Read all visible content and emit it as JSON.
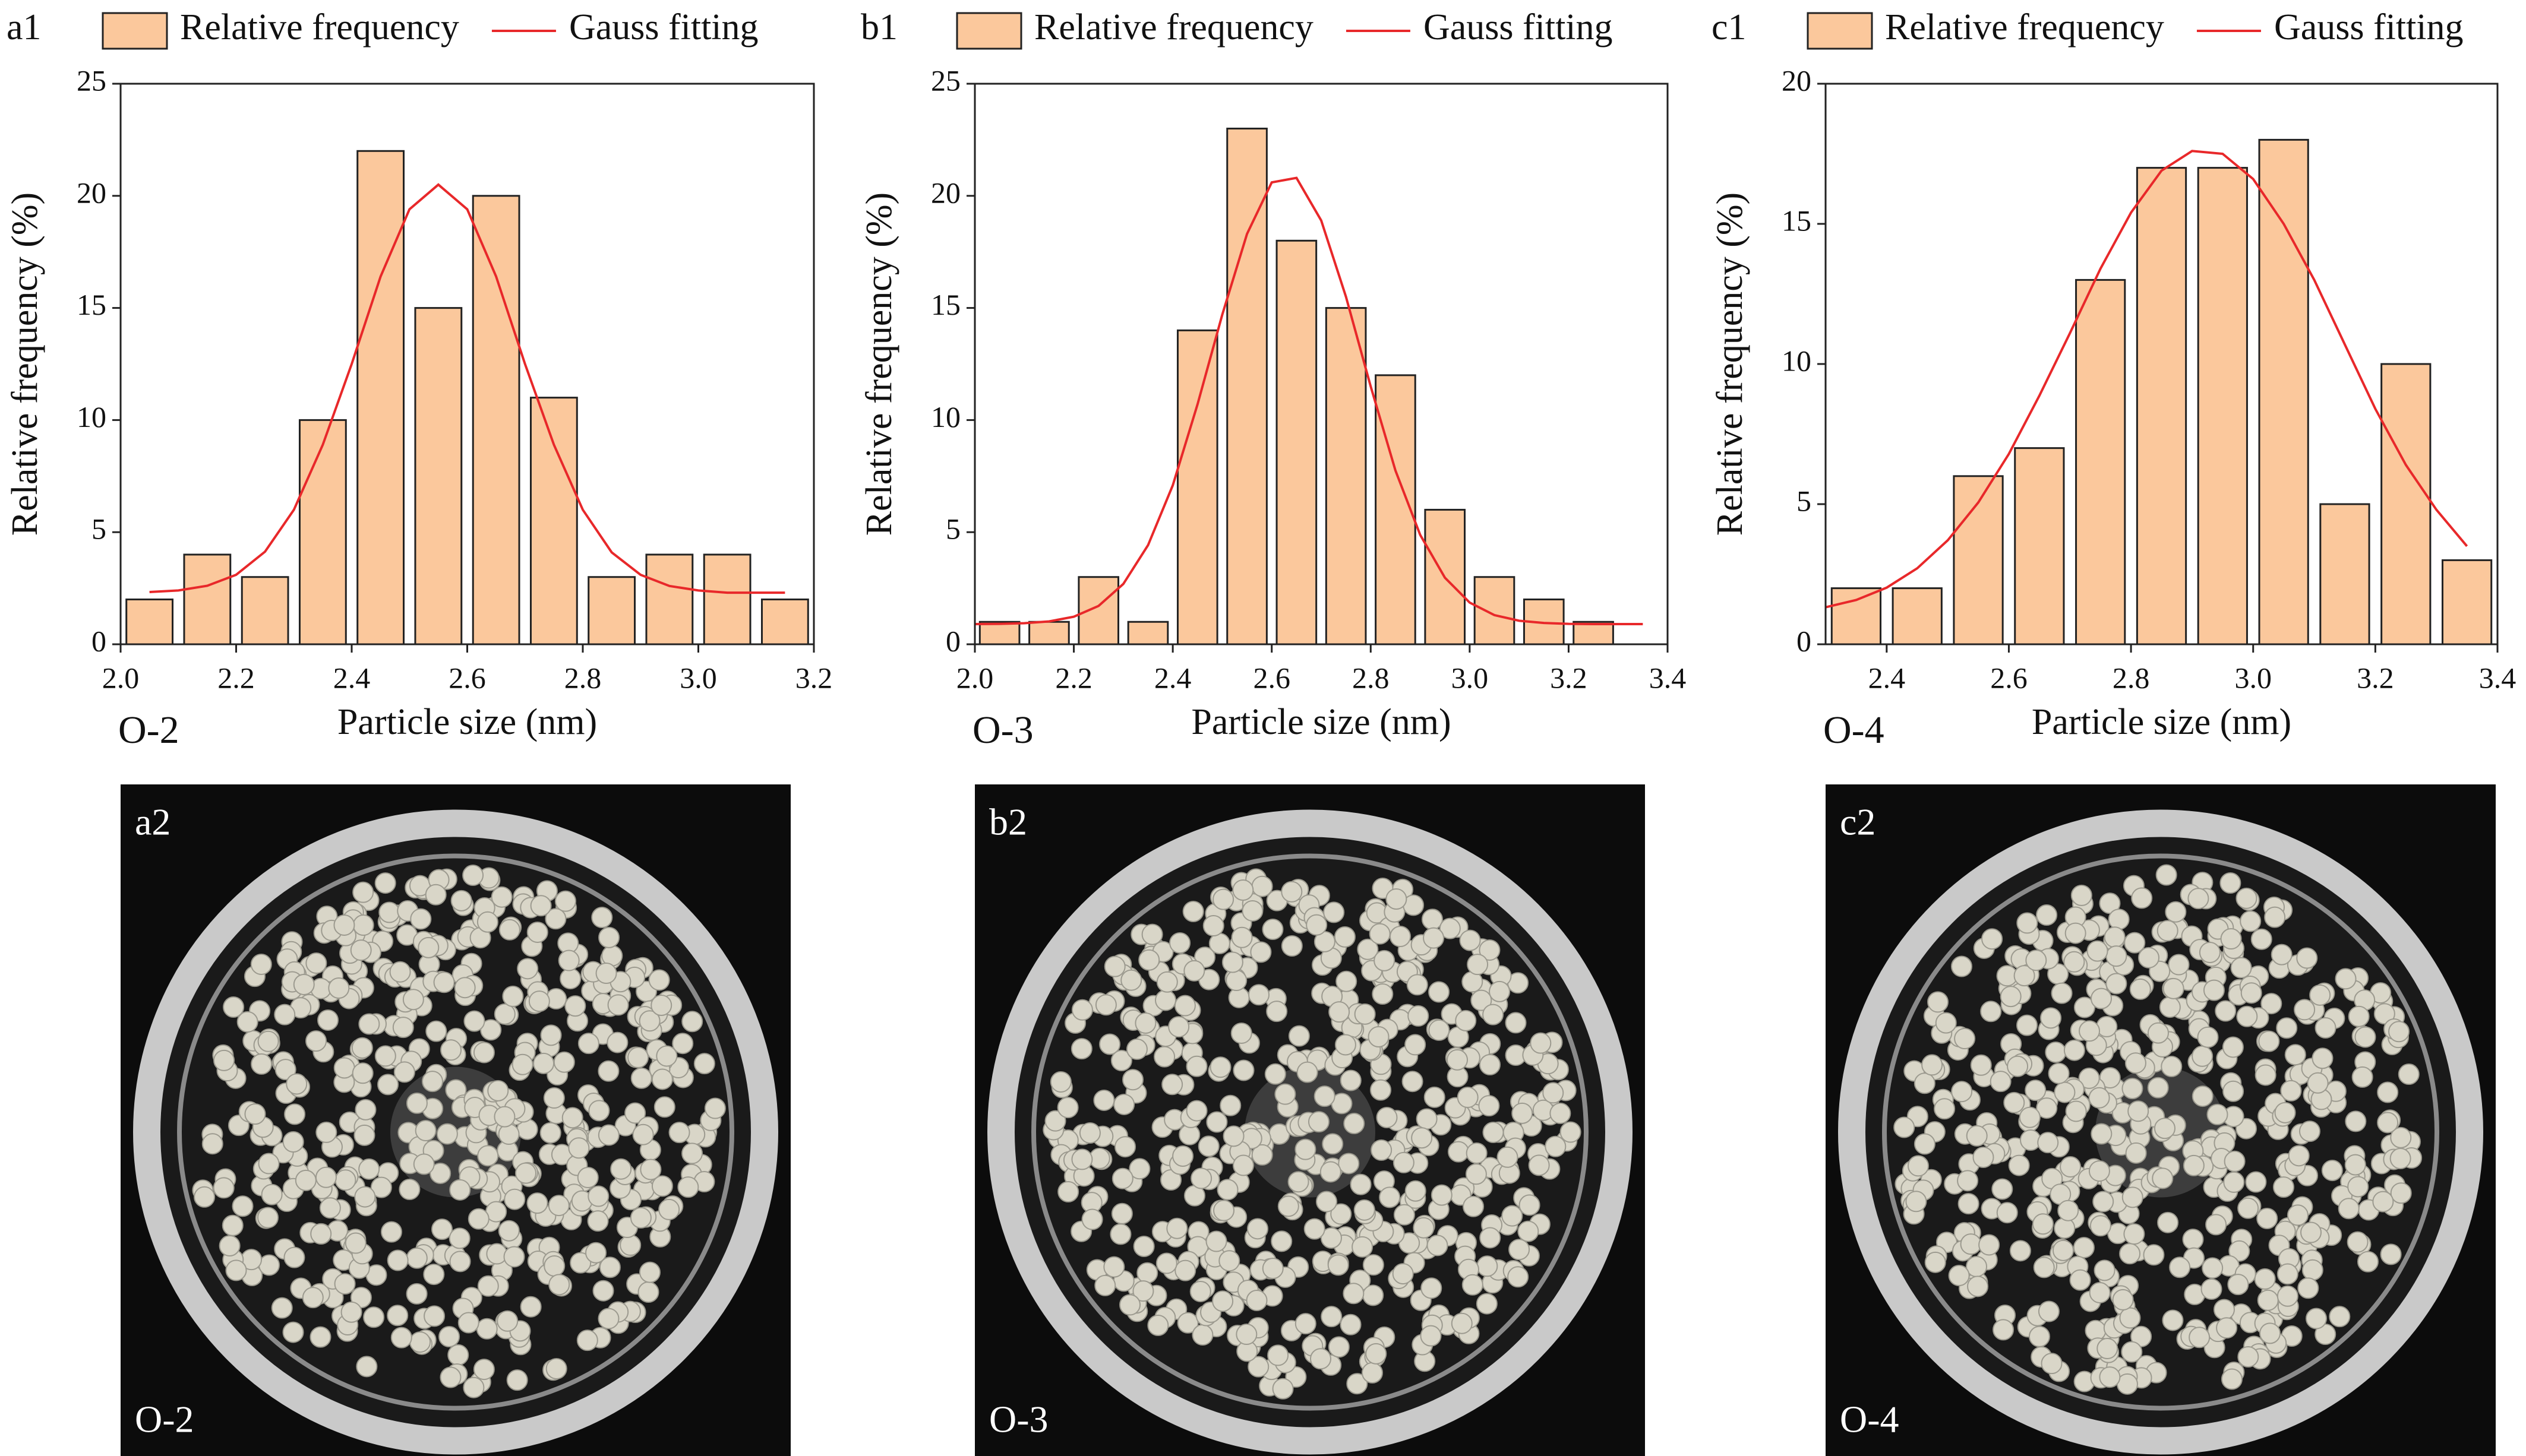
{
  "chart_data": [
    {
      "type": "bar",
      "label": "a1",
      "sample": "O-2",
      "xlabel": "Particle size (nm)",
      "ylabel": "Relative frequency (%)",
      "xlim": [
        2.0,
        3.2
      ],
      "ylim": [
        0,
        25
      ],
      "xticks": [
        {
          "value": 2.0,
          "label": "2.0"
        },
        2.2,
        2.4,
        2.6,
        2.8,
        {
          "value": 3.0,
          "label": "3.0"
        },
        3.2
      ],
      "yticks": [
        0,
        5,
        10,
        15,
        20,
        25
      ],
      "series": [
        {
          "name": "Relative frequency",
          "color": "#fbc89c",
          "x": [
            2.05,
            2.15,
            2.25,
            2.35,
            2.45,
            2.55,
            2.65,
            2.75,
            2.85,
            2.95,
            3.05,
            3.15
          ],
          "values": [
            2,
            4,
            3,
            10,
            22,
            15,
            20,
            11,
            3,
            4,
            4,
            2
          ]
        },
        {
          "name": "Gauss fitting",
          "type": "line",
          "color": "#e8282a",
          "x": [
            2.05,
            2.1,
            2.15,
            2.2,
            2.25,
            2.3,
            2.35,
            2.4,
            2.45,
            2.5,
            2.55,
            2.6,
            2.65,
            2.7,
            2.75,
            2.8,
            2.85,
            2.9,
            2.95,
            3.0,
            3.05,
            3.1,
            3.15
          ],
          "values": [
            2.33,
            2.4,
            2.61,
            3.1,
            4.13,
            6.0,
            8.9,
            12.5,
            16.4,
            19.4,
            20.5,
            19.4,
            16.4,
            12.5,
            8.9,
            6.0,
            4.1,
            3.1,
            2.6,
            2.4,
            2.3,
            2.3,
            2.3
          ]
        }
      ]
    },
    {
      "type": "bar",
      "label": "b1",
      "sample": "O-3",
      "xlabel": "Particle size (nm)",
      "ylabel": "Relative frequency (%)",
      "xlim": [
        2.0,
        3.4
      ],
      "ylim": [
        0,
        25
      ],
      "xticks": [
        {
          "value": 2.0,
          "label": "2.0"
        },
        2.2,
        2.4,
        2.6,
        2.8,
        {
          "value": 3.0,
          "label": "3.0"
        },
        3.2,
        3.4
      ],
      "yticks": [
        0,
        5,
        10,
        15,
        20,
        25
      ],
      "series": [
        {
          "name": "Relative frequency",
          "color": "#fbc89c",
          "x": [
            2.05,
            2.15,
            2.25,
            2.35,
            2.45,
            2.55,
            2.65,
            2.75,
            2.85,
            2.95,
            3.05,
            3.15,
            3.25
          ],
          "values": [
            1,
            1,
            3,
            1,
            14,
            23,
            18,
            15,
            12,
            6,
            3,
            2,
            1
          ]
        },
        {
          "name": "Gauss fitting",
          "type": "line",
          "color": "#e8282a",
          "x": [
            2.0,
            2.05,
            2.1,
            2.15,
            2.2,
            2.25,
            2.3,
            2.35,
            2.4,
            2.45,
            2.5,
            2.55,
            2.6,
            2.65,
            2.7,
            2.75,
            2.8,
            2.85,
            2.9,
            2.95,
            3.0,
            3.05,
            3.1,
            3.15,
            3.2,
            3.25,
            3.3,
            3.35
          ],
          "values": [
            0.9,
            0.91,
            0.94,
            1.02,
            1.23,
            1.71,
            2.69,
            4.42,
            7.09,
            10.7,
            14.7,
            18.3,
            20.6,
            20.8,
            18.9,
            15.5,
            11.5,
            7.75,
            4.88,
            2.97,
            1.86,
            1.3,
            1.05,
            0.95,
            0.91,
            0.9,
            0.9,
            0.9
          ]
        }
      ]
    },
    {
      "type": "bar",
      "label": "c1",
      "sample": "O-4",
      "xlabel": "Particle size (nm)",
      "ylabel": "Relative frequency (%)",
      "xlim": [
        2.3,
        3.4
      ],
      "ylim": [
        0,
        20
      ],
      "xticks": [
        2.4,
        2.6,
        2.8,
        {
          "value": 3.0,
          "label": "3.0"
        },
        3.2,
        3.4
      ],
      "yticks": [
        0,
        5,
        10,
        15,
        20
      ],
      "series": [
        {
          "name": "Relative frequency",
          "color": "#fbc89c",
          "x": [
            2.35,
            2.45,
            2.55,
            2.65,
            2.75,
            2.85,
            2.95,
            3.05,
            3.15,
            3.25,
            3.35
          ],
          "values": [
            2,
            2,
            6,
            7,
            13,
            17,
            17,
            18,
            5,
            10,
            3
          ]
        },
        {
          "name": "Gauss fitting",
          "type": "line",
          "color": "#e8282a",
          "x": [
            2.3,
            2.35,
            2.4,
            2.45,
            2.5,
            2.55,
            2.6,
            2.65,
            2.7,
            2.75,
            2.8,
            2.85,
            2.9,
            2.95,
            3.0,
            3.05,
            3.1,
            3.15,
            3.2,
            3.25,
            3.3,
            3.35
          ],
          "values": [
            1.32,
            1.58,
            2.02,
            2.71,
            3.71,
            5.06,
            6.79,
            8.87,
            11.1,
            13.4,
            15.4,
            16.9,
            17.6,
            17.5,
            16.6,
            15.0,
            13.0,
            10.7,
            8.4,
            6.4,
            4.8,
            3.5
          ]
        }
      ]
    }
  ],
  "photos": [
    {
      "label": "a2",
      "sample": "O-2"
    },
    {
      "label": "b2",
      "sample": "O-3"
    },
    {
      "label": "c2",
      "sample": "O-4"
    }
  ]
}
